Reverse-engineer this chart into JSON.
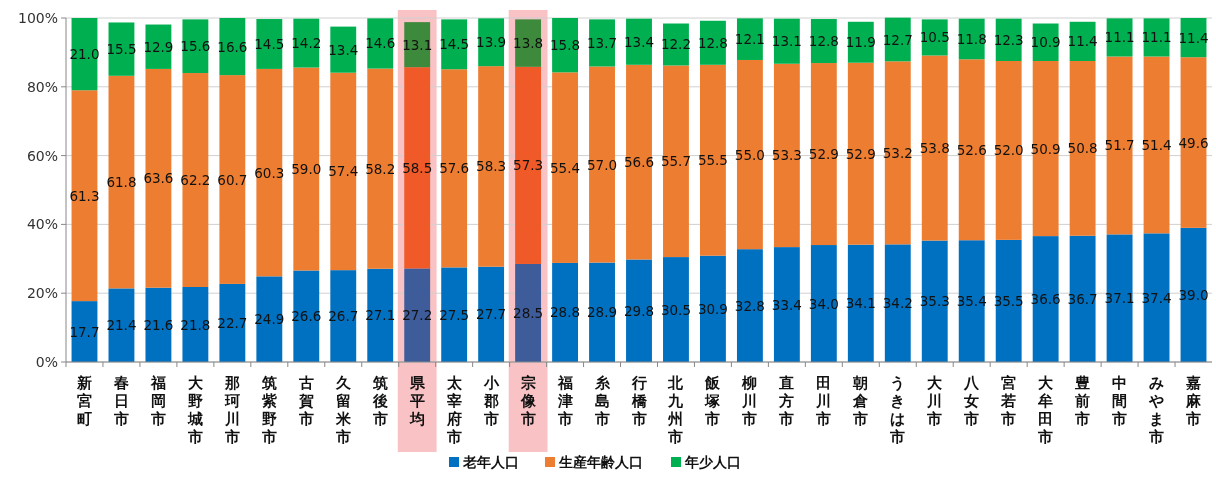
{
  "chart_data": {
    "type": "bar",
    "stacked": true,
    "grid": "y",
    "legend": "bottom",
    "categories": [
      "新宮町",
      "春日市",
      "福岡市",
      "大野城市",
      "那珂川市",
      "筑紫野市",
      "古賀市",
      "久留米市",
      "筑後市",
      "県平均",
      "太宰府市",
      "小郡市",
      "宗像市",
      "福津市",
      "糸島市",
      "行橋市",
      "北九州市",
      "飯塚市",
      "柳川市",
      "直方市",
      "田川市",
      "朝倉市",
      "うきは市",
      "大川市",
      "八女市",
      "宮若市",
      "大牟田市",
      "豊前市",
      "中間市",
      "みやま市",
      "嘉麻市"
    ],
    "ylim": [
      0,
      100
    ],
    "yticks": [
      {
        "value": 0,
        "label": "0%"
      },
      {
        "value": 20,
        "label": "20%"
      },
      {
        "value": 40,
        "label": "40%"
      },
      {
        "value": 60,
        "label": "60%"
      },
      {
        "value": 80,
        "label": "80%"
      },
      {
        "value": 100,
        "label": "100%"
      }
    ],
    "bands": [
      {
        "axis": "x",
        "from": "県平均",
        "to": "県平均",
        "color": "#f9c2c4"
      },
      {
        "axis": "x",
        "from": "宗像市",
        "to": "宗像市",
        "color": "#f9c2c4"
      }
    ],
    "series": [
      {
        "name": "老年人口",
        "color": "#0070c0",
        "colors": [
          "#0070c0",
          "#0070c0",
          "#0070c0",
          "#0070c0",
          "#0070c0",
          "#0070c0",
          "#0070c0",
          "#0070c0",
          "#0070c0",
          "#3e5c9a",
          "#0070c0",
          "#0070c0",
          "#3e5c9a",
          "#0070c0",
          "#0070c0",
          "#0070c0",
          "#0070c0",
          "#0070c0",
          "#0070c0",
          "#0070c0",
          "#0070c0",
          "#0070c0",
          "#0070c0",
          "#0070c0",
          "#0070c0",
          "#0070c0",
          "#0070c0",
          "#0070c0",
          "#0070c0",
          "#0070c0",
          "#0070c0"
        ],
        "values": [
          17.7,
          21.4,
          21.6,
          21.8,
          22.7,
          24.9,
          26.6,
          26.7,
          27.1,
          27.2,
          27.5,
          27.7,
          28.5,
          28.8,
          28.9,
          29.8,
          30.5,
          30.9,
          32.8,
          33.4,
          34.0,
          34.1,
          34.2,
          35.3,
          35.4,
          35.5,
          36.6,
          36.7,
          37.1,
          37.4,
          39.0
        ],
        "value_labels": [
          "17.7",
          "21.4",
          "21.6",
          "21.8",
          "22.7",
          "24.9",
          "26.6",
          "26.7",
          "27.1",
          "27.2",
          "27.5",
          "27.7",
          "28.5",
          "28.8",
          "28.9",
          "29.8",
          "30.5",
          "30.9",
          "32.8",
          "33.4",
          "34.0",
          "34.1",
          "34.2",
          "35.3",
          "35.4",
          "35.5",
          "36.6",
          "36.7",
          "37.1",
          "37.4",
          "39.0"
        ]
      },
      {
        "name": "生産年齢人口",
        "color": "#ed7d31",
        "colors": [
          "#ed7d31",
          "#ed7d31",
          "#ed7d31",
          "#ed7d31",
          "#ed7d31",
          "#ed7d31",
          "#ed7d31",
          "#ed7d31",
          "#ed7d31",
          "#f05a28",
          "#ed7d31",
          "#ed7d31",
          "#f05a28",
          "#ed7d31",
          "#ed7d31",
          "#ed7d31",
          "#ed7d31",
          "#ed7d31",
          "#ed7d31",
          "#ed7d31",
          "#ed7d31",
          "#ed7d31",
          "#ed7d31",
          "#ed7d31",
          "#ed7d31",
          "#ed7d31",
          "#ed7d31",
          "#ed7d31",
          "#ed7d31",
          "#ed7d31",
          "#ed7d31"
        ],
        "values": [
          61.3,
          61.8,
          63.6,
          62.2,
          60.7,
          60.3,
          59.0,
          57.4,
          58.2,
          58.5,
          57.6,
          58.3,
          57.3,
          55.4,
          57.0,
          56.6,
          55.7,
          55.5,
          55.0,
          53.3,
          52.9,
          52.9,
          53.2,
          53.8,
          52.6,
          52.0,
          50.9,
          50.8,
          51.7,
          51.4,
          49.6
        ],
        "value_labels": [
          "61.3",
          "61.8",
          "63.6",
          "62.2",
          "60.7",
          "60.3",
          "59.0",
          "57.4",
          "58.2",
          "58.5",
          "57.6",
          "58.3",
          "57.3",
          "55.4",
          "57.0",
          "56.6",
          "55.7",
          "55.5",
          "55.0",
          "53.3",
          "52.9",
          "52.9",
          "53.2",
          "53.8",
          "52.6",
          "52.0",
          "50.9",
          "50.8",
          "51.7",
          "51.4",
          "49.6"
        ]
      },
      {
        "name": "年少人口",
        "color": "#00b050",
        "colors": [
          "#00b050",
          "#00b050",
          "#00b050",
          "#00b050",
          "#00b050",
          "#00b050",
          "#00b050",
          "#00b050",
          "#00b050",
          "#3d8a3d",
          "#00b050",
          "#00b050",
          "#3d8a3d",
          "#00b050",
          "#00b050",
          "#00b050",
          "#00b050",
          "#00b050",
          "#00b050",
          "#00b050",
          "#00b050",
          "#00b050",
          "#00b050",
          "#00b050",
          "#00b050",
          "#00b050",
          "#00b050",
          "#00b050",
          "#00b050",
          "#00b050",
          "#00b050"
        ],
        "values": [
          21.0,
          15.5,
          12.9,
          15.6,
          16.6,
          14.5,
          14.2,
          13.4,
          14.6,
          13.1,
          14.5,
          13.9,
          13.8,
          15.8,
          13.7,
          13.4,
          12.2,
          12.8,
          12.1,
          13.1,
          12.8,
          11.9,
          12.7,
          10.5,
          11.8,
          12.3,
          10.9,
          11.4,
          11.1,
          11.1,
          11.4
        ],
        "value_labels": [
          "21.0",
          "15.5",
          "12.9",
          "15.6",
          "16.6",
          "14.5",
          "14.2",
          "13.4",
          "14.6",
          "13.1",
          "14.5",
          "13.9",
          "13.8",
          "15.8",
          "13.7",
          "13.4",
          "12.2",
          "12.8",
          "12.1",
          "13.1",
          "12.8",
          "11.9",
          "12.7",
          "10.5",
          "11.8",
          "12.3",
          "10.9",
          "11.4",
          "11.1",
          "11.1",
          "11.4"
        ]
      }
    ]
  }
}
